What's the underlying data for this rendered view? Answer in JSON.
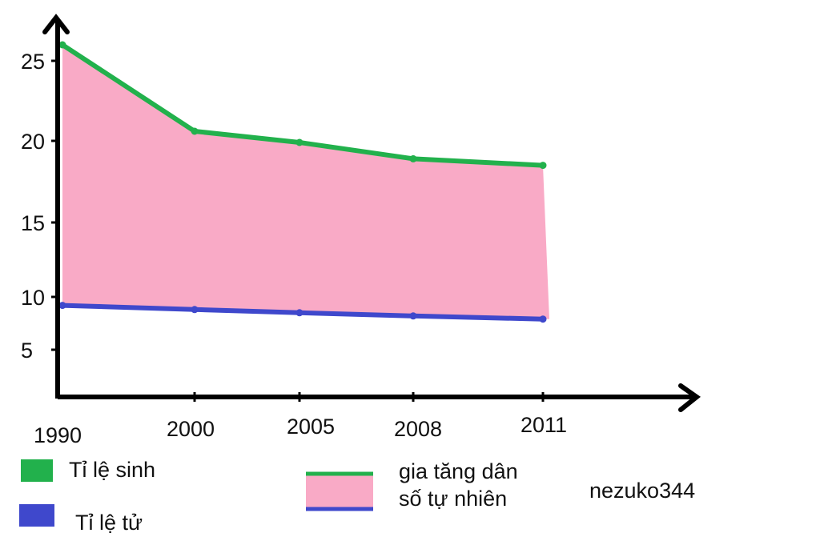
{
  "chart_data": {
    "type": "area",
    "x": [
      "1990",
      "2000",
      "2005",
      "2008",
      "2011"
    ],
    "y_ticks": [
      "25",
      "20",
      "15",
      "10",
      "5"
    ],
    "series": [
      {
        "name": "Tỉ lệ sinh",
        "values": [
          26.0,
          20.6,
          19.9,
          18.9,
          18.5
        ],
        "color": "#22b14c"
      },
      {
        "name": "Tỉ lệ tử",
        "values": [
          9.2,
          8.8,
          8.5,
          8.2,
          7.9
        ],
        "color": "#3f48cc"
      }
    ],
    "fill_between": {
      "label": [
        "gia tăng dân",
        "số tự nhiên"
      ],
      "color": "#f9aac6"
    },
    "grid": false,
    "legend": "bottom"
  },
  "watermark": "nezuko344"
}
